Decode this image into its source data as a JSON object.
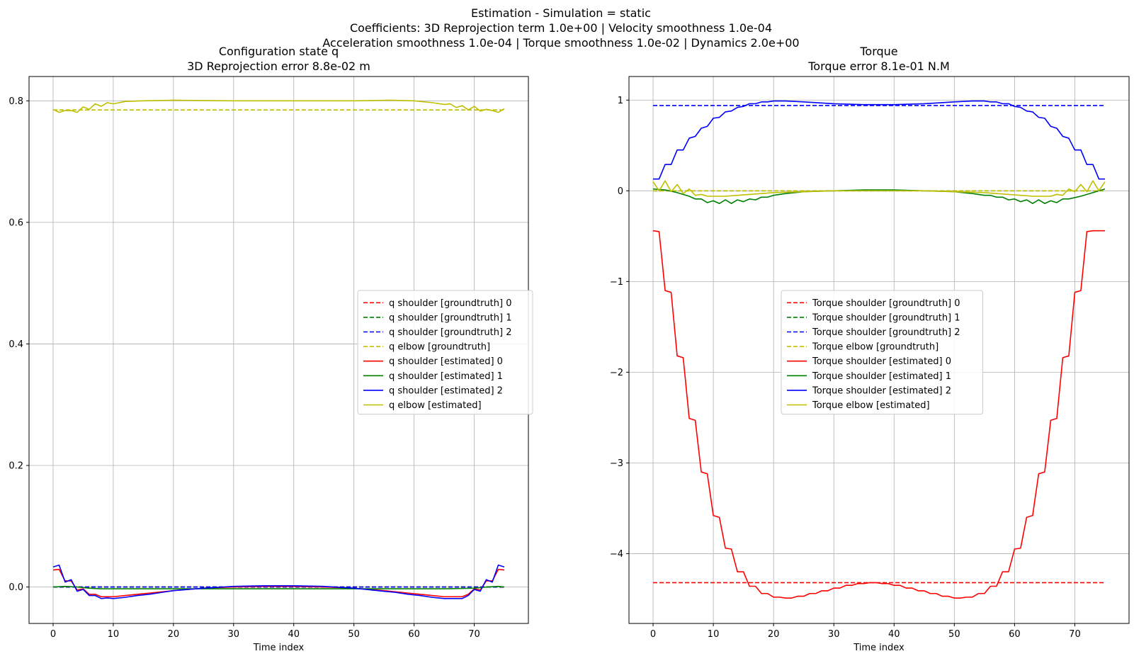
{
  "figure": {
    "title_lines": [
      "Estimation - Simulation = static",
      "Coefficients: 3D Reprojection term 1.0e+00 | Velocity smoothness 1.0e-04",
      "Acceleration smoothness 1.0e-04 | Torque smoothness 1.0e-02 | Dynamics 2.0e+00"
    ]
  },
  "chart_data": [
    {
      "type": "line",
      "title": "Configuration state q",
      "subtitle": "3D Reprojection error 8.8e-02 m",
      "xlabel": "Time index",
      "ylabel": "",
      "xlim": [
        -4,
        79
      ],
      "ylim": [
        -0.06,
        0.84
      ],
      "xticks": [
        0,
        10,
        20,
        30,
        40,
        50,
        60,
        70
      ],
      "xtick_labels": [
        "0",
        "10",
        "20",
        "30",
        "40",
        "50",
        "60",
        "70"
      ],
      "yticks": [
        0.0,
        0.2,
        0.4,
        0.6,
        0.8
      ],
      "ytick_labels": [
        "0.0",
        "0.2",
        "0.4",
        "0.6",
        "0.8"
      ],
      "grid": true,
      "legend_position": "center-right",
      "series": [
        {
          "name": "q shoulder [groundtruth] 0",
          "color": "#ff0000",
          "style": "dashed",
          "x": [
            0,
            75
          ],
          "values": [
            0.0,
            0.0
          ]
        },
        {
          "name": "q shoulder [groundtruth] 1",
          "color": "#008000",
          "style": "dashed",
          "x": [
            0,
            75
          ],
          "values": [
            0.0,
            0.0
          ]
        },
        {
          "name": "q shoulder [groundtruth] 2",
          "color": "#0000ff",
          "style": "dashed",
          "x": [
            0,
            75
          ],
          "values": [
            0.0,
            0.0
          ]
        },
        {
          "name": "q elbow [groundtruth]",
          "color": "#bfbf00",
          "style": "dashed",
          "x": [
            0,
            75
          ],
          "values": [
            0.785,
            0.785
          ]
        },
        {
          "name": "q shoulder [estimated] 0",
          "color": "#ff0000",
          "style": "solid",
          "x": [
            0,
            1,
            2,
            3,
            4,
            5,
            6,
            7,
            8,
            9,
            10,
            12,
            14,
            16,
            18,
            20,
            25,
            30,
            35,
            40,
            45,
            50,
            55,
            57,
            59,
            61,
            63,
            65,
            67,
            68,
            69,
            70,
            71,
            72,
            73,
            74,
            75
          ],
          "values": [
            0.028,
            0.029,
            0.01,
            0.01,
            -0.005,
            -0.003,
            -0.012,
            -0.012,
            -0.016,
            -0.016,
            -0.016,
            -0.014,
            -0.012,
            -0.01,
            -0.008,
            -0.006,
            -0.002,
            0.0,
            0.001,
            0.001,
            0.0,
            -0.002,
            -0.006,
            -0.008,
            -0.01,
            -0.012,
            -0.014,
            -0.016,
            -0.016,
            -0.016,
            -0.012,
            -0.003,
            -0.005,
            0.01,
            0.01,
            0.029,
            0.028
          ]
        },
        {
          "name": "q shoulder [estimated] 1",
          "color": "#008000",
          "style": "solid",
          "x": [
            0,
            2,
            4,
            6,
            8,
            10,
            20,
            30,
            40,
            50,
            60,
            65,
            70,
            72,
            74,
            75
          ],
          "values": [
            0.0,
            0.001,
            0.0,
            -0.002,
            -0.003,
            -0.003,
            -0.003,
            -0.003,
            -0.003,
            -0.003,
            -0.003,
            -0.003,
            -0.002,
            0.0,
            0.001,
            0.0
          ]
        },
        {
          "name": "q shoulder [estimated] 2",
          "color": "#0000ff",
          "style": "solid",
          "x": [
            0,
            1,
            2,
            3,
            4,
            5,
            6,
            7,
            8,
            9,
            10,
            12,
            14,
            16,
            18,
            20,
            25,
            30,
            35,
            40,
            45,
            50,
            55,
            57,
            59,
            61,
            63,
            65,
            67,
            68,
            69,
            70,
            71,
            72,
            73,
            74,
            75
          ],
          "values": [
            0.033,
            0.036,
            0.008,
            0.012,
            -0.007,
            -0.004,
            -0.014,
            -0.014,
            -0.019,
            -0.018,
            -0.019,
            -0.017,
            -0.014,
            -0.012,
            -0.009,
            -0.006,
            -0.002,
            0.001,
            0.002,
            0.002,
            0.001,
            -0.002,
            -0.007,
            -0.009,
            -0.012,
            -0.014,
            -0.017,
            -0.019,
            -0.019,
            -0.019,
            -0.014,
            -0.004,
            -0.007,
            0.012,
            0.008,
            0.036,
            0.033
          ]
        },
        {
          "name": "q elbow [estimated]",
          "color": "#bfbf00",
          "style": "solid",
          "x": [
            0,
            1,
            2,
            3,
            4,
            5,
            6,
            7,
            8,
            9,
            10,
            12,
            15,
            20,
            30,
            40,
            50,
            56,
            60,
            63,
            65,
            66,
            67,
            68,
            69,
            70,
            71,
            72,
            73,
            74,
            75
          ],
          "values": [
            0.786,
            0.781,
            0.784,
            0.784,
            0.781,
            0.79,
            0.786,
            0.795,
            0.791,
            0.797,
            0.795,
            0.799,
            0.8,
            0.801,
            0.8,
            0.8,
            0.8,
            0.801,
            0.8,
            0.797,
            0.794,
            0.795,
            0.789,
            0.792,
            0.785,
            0.791,
            0.783,
            0.786,
            0.784,
            0.781,
            0.787
          ]
        }
      ]
    },
    {
      "type": "line",
      "title": "Torque",
      "subtitle": "Torque error 8.1e-01 N.M",
      "xlabel": "Time index",
      "ylabel": "",
      "xlim": [
        -4,
        79
      ],
      "ylim": [
        -4.77,
        1.26
      ],
      "xticks": [
        0,
        10,
        20,
        30,
        40,
        50,
        60,
        70
      ],
      "xtick_labels": [
        "0",
        "10",
        "20",
        "30",
        "40",
        "50",
        "60",
        "70"
      ],
      "yticks": [
        -4,
        -3,
        -2,
        -1,
        0,
        1
      ],
      "ytick_labels": [
        "−4",
        "−3",
        "−2",
        "−1",
        "0",
        "1"
      ],
      "grid": true,
      "legend_position": "center",
      "series": [
        {
          "name": "Torque shoulder [groundtruth] 0",
          "color": "#ff0000",
          "style": "dashed",
          "x": [
            0,
            75
          ],
          "values": [
            -4.32,
            -4.32
          ]
        },
        {
          "name": "Torque shoulder [groundtruth] 1",
          "color": "#008000",
          "style": "dashed",
          "x": [
            0,
            75
          ],
          "values": [
            0.0,
            0.0
          ]
        },
        {
          "name": "Torque shoulder [groundtruth] 2",
          "color": "#0000ff",
          "style": "dashed",
          "x": [
            0,
            75
          ],
          "values": [
            0.94,
            0.94
          ]
        },
        {
          "name": "Torque elbow [groundtruth]",
          "color": "#bfbf00",
          "style": "dashed",
          "x": [
            0,
            75
          ],
          "values": [
            0.0,
            0.0
          ]
        },
        {
          "name": "Torque shoulder [estimated] 0",
          "color": "#ff0000",
          "style": "solid",
          "x": [
            0,
            1,
            2,
            3,
            4,
            5,
            6,
            7,
            8,
            9,
            10,
            11,
            12,
            13,
            14,
            15,
            16,
            17,
            18,
            19,
            20,
            21,
            22,
            23,
            24,
            25,
            26,
            27,
            28,
            29,
            30,
            31,
            32,
            33,
            34,
            35,
            36,
            37,
            38,
            39,
            40,
            41,
            42,
            43,
            44,
            45,
            46,
            47,
            48,
            49,
            50,
            51,
            52,
            53,
            54,
            55,
            56,
            57,
            58,
            59,
            60,
            61,
            62,
            63,
            64,
            65,
            66,
            67,
            68,
            69,
            70,
            71,
            72,
            73,
            74,
            75
          ],
          "values": [
            -0.44,
            -0.45,
            -1.1,
            -1.12,
            -1.82,
            -1.84,
            -2.51,
            -2.53,
            -3.1,
            -3.12,
            -3.58,
            -3.6,
            -3.94,
            -3.95,
            -4.2,
            -4.2,
            -4.36,
            -4.36,
            -4.44,
            -4.44,
            -4.48,
            -4.48,
            -4.49,
            -4.49,
            -4.47,
            -4.47,
            -4.44,
            -4.44,
            -4.41,
            -4.41,
            -4.38,
            -4.38,
            -4.35,
            -4.35,
            -4.33,
            -4.33,
            -4.32,
            -4.32,
            -4.33,
            -4.33,
            -4.35,
            -4.35,
            -4.38,
            -4.38,
            -4.41,
            -4.41,
            -4.44,
            -4.44,
            -4.47,
            -4.47,
            -4.49,
            -4.49,
            -4.48,
            -4.48,
            -4.44,
            -4.44,
            -4.36,
            -4.36,
            -4.2,
            -4.2,
            -3.95,
            -3.94,
            -3.6,
            -3.58,
            -3.12,
            -3.1,
            -2.53,
            -2.51,
            -1.84,
            -1.82,
            -1.12,
            -1.1,
            -0.45,
            -0.44,
            -0.44,
            -0.44
          ]
        },
        {
          "name": "Torque shoulder [estimated] 1",
          "color": "#008000",
          "style": "solid",
          "x": [
            0,
            2,
            4,
            6,
            7,
            8,
            9,
            10,
            11,
            12,
            13,
            14,
            15,
            16,
            17,
            18,
            19,
            20,
            22,
            25,
            30,
            35,
            40,
            45,
            50,
            53,
            55,
            56,
            57,
            58,
            59,
            60,
            61,
            62,
            63,
            64,
            65,
            66,
            67,
            68,
            69,
            71,
            73,
            75
          ],
          "values": [
            0.02,
            0.01,
            -0.02,
            -0.06,
            -0.09,
            -0.09,
            -0.13,
            -0.11,
            -0.14,
            -0.1,
            -0.14,
            -0.1,
            -0.12,
            -0.09,
            -0.1,
            -0.07,
            -0.07,
            -0.05,
            -0.03,
            -0.01,
            0.0,
            0.01,
            0.01,
            0.0,
            -0.01,
            -0.03,
            -0.05,
            -0.05,
            -0.07,
            -0.07,
            -0.1,
            -0.09,
            -0.12,
            -0.1,
            -0.14,
            -0.1,
            -0.14,
            -0.11,
            -0.13,
            -0.09,
            -0.09,
            -0.06,
            -0.02,
            0.02
          ]
        },
        {
          "name": "Torque shoulder [estimated] 2",
          "color": "#0000ff",
          "style": "solid",
          "x": [
            0,
            1,
            2,
            3,
            4,
            5,
            6,
            7,
            8,
            9,
            10,
            11,
            12,
            13,
            14,
            15,
            16,
            17,
            18,
            19,
            20,
            22,
            25,
            30,
            35,
            40,
            45,
            50,
            53,
            55,
            56,
            57,
            58,
            59,
            60,
            61,
            62,
            63,
            64,
            65,
            66,
            67,
            68,
            69,
            70,
            71,
            72,
            73,
            74,
            75
          ],
          "values": [
            0.13,
            0.13,
            0.29,
            0.29,
            0.45,
            0.45,
            0.58,
            0.6,
            0.69,
            0.71,
            0.8,
            0.81,
            0.87,
            0.88,
            0.92,
            0.93,
            0.96,
            0.96,
            0.98,
            0.98,
            0.99,
            0.99,
            0.98,
            0.96,
            0.95,
            0.95,
            0.96,
            0.98,
            0.99,
            0.99,
            0.98,
            0.98,
            0.96,
            0.96,
            0.93,
            0.92,
            0.88,
            0.87,
            0.81,
            0.8,
            0.71,
            0.69,
            0.6,
            0.58,
            0.45,
            0.45,
            0.29,
            0.29,
            0.13,
            0.13
          ]
        },
        {
          "name": "Torque elbow [estimated]",
          "color": "#bfbf00",
          "style": "solid",
          "x": [
            0,
            1,
            2,
            3,
            4,
            5,
            6,
            7,
            8,
            9,
            10,
            12,
            14,
            16,
            18,
            20,
            25,
            30,
            35,
            40,
            45,
            50,
            55,
            57,
            59,
            61,
            63,
            65,
            66,
            67,
            68,
            69,
            70,
            71,
            72,
            73,
            74,
            75
          ],
          "values": [
            0.1,
            0.0,
            0.11,
            -0.01,
            0.07,
            -0.03,
            0.02,
            -0.05,
            -0.04,
            -0.06,
            -0.06,
            -0.06,
            -0.05,
            -0.04,
            -0.03,
            -0.02,
            -0.01,
            0.0,
            0.0,
            0.0,
            0.0,
            -0.01,
            -0.02,
            -0.03,
            -0.04,
            -0.05,
            -0.06,
            -0.06,
            -0.06,
            -0.04,
            -0.05,
            0.02,
            -0.01,
            0.07,
            -0.01,
            0.11,
            0.0,
            0.1
          ]
        }
      ]
    }
  ]
}
